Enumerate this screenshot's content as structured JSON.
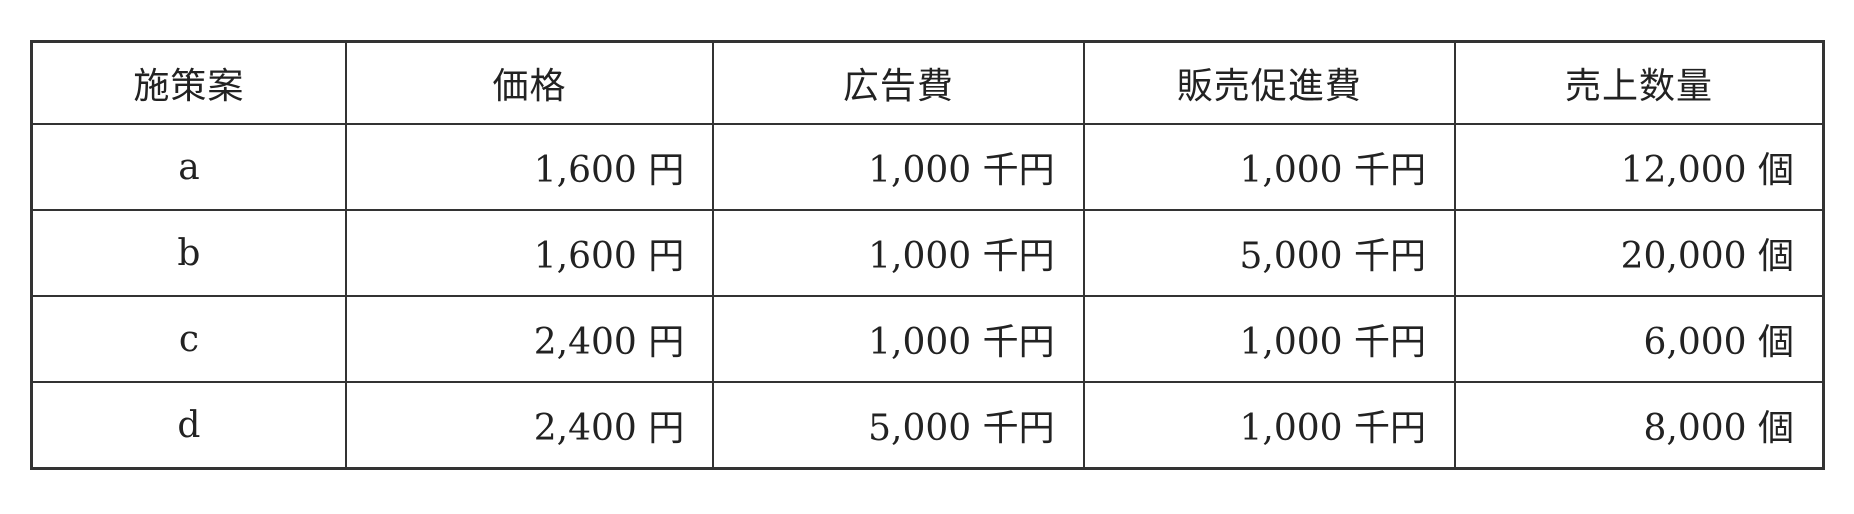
{
  "table": {
    "headers": [
      "施策案",
      "価格",
      "広告費",
      "販売促進費",
      "売上数量"
    ],
    "rows": [
      [
        "a",
        "1,600 円",
        "1,000 千円",
        "1,000 千円",
        "12,000 個"
      ],
      [
        "b",
        "1,600 円",
        "1,000 千円",
        "5,000 千円",
        "20,000 個"
      ],
      [
        "c",
        "2,400 円",
        "1,000 千円",
        "1,000 千円",
        "6,000 個"
      ],
      [
        "d",
        "2,400 円",
        "5,000 千円",
        "1,000 千円",
        "8,000 個"
      ]
    ]
  }
}
